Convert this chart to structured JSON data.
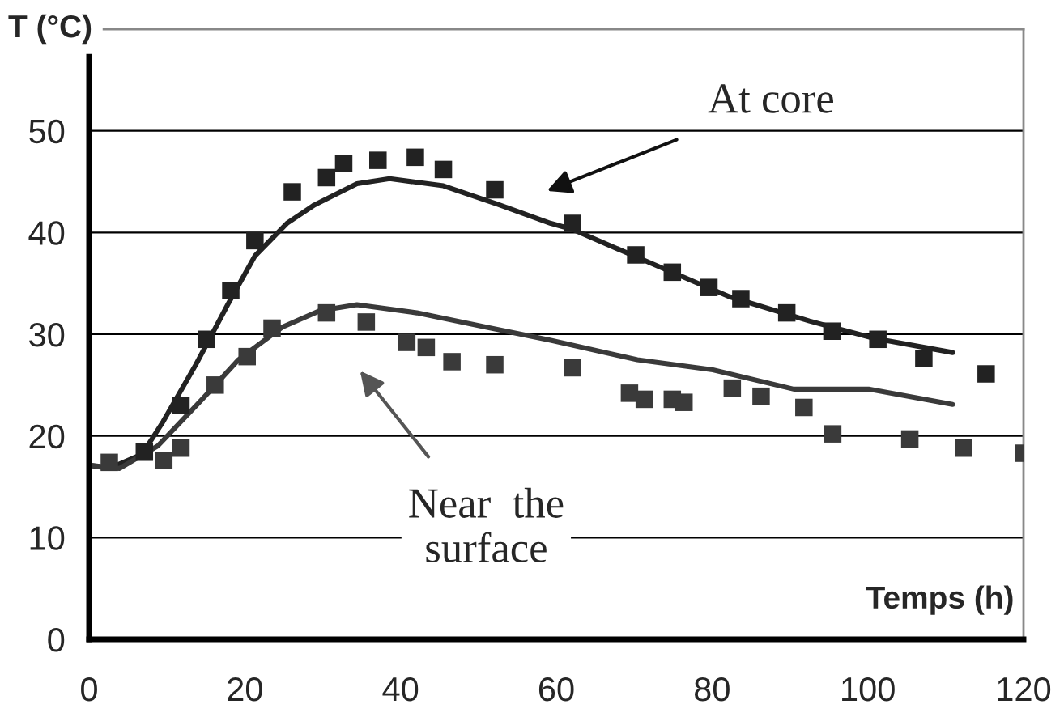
{
  "chart_data": {
    "type": "scatter",
    "xlabel": "Temps (h)",
    "ylabel": "T (°C)",
    "xlim": [
      0,
      120
    ],
    "xticks": [
      0,
      20,
      40,
      60,
      80,
      100,
      120
    ],
    "ylim": [
      0,
      60
    ],
    "yticks": [
      0,
      10,
      20,
      30,
      40,
      50
    ],
    "grid": "y",
    "legend": false,
    "series": [
      {
        "marker": "square",
        "color": "#222222",
        "x": [
          7.1,
          11.8,
          15.1,
          18.2,
          21.3,
          26.1,
          30.5,
          32.7,
          37.1,
          41.9,
          45.5,
          52.1,
          62.1,
          70.2,
          74.9,
          79.6,
          83.7,
          89.6,
          95.4,
          101.3,
          107.2,
          115.2
        ],
        "values": [
          18.4,
          23.0,
          29.5,
          34.3,
          39.2,
          44.0,
          45.4,
          46.8,
          47.1,
          47.4,
          46.2,
          44.2,
          40.9,
          37.8,
          36.1,
          34.6,
          33.5,
          32.1,
          30.3,
          29.5,
          27.6,
          26.1
        ]
      },
      {
        "type": "line",
        "color": "#222222",
        "x": [
          0.2,
          2.6,
          6.8,
          9.5,
          13.7,
          17.8,
          21.3,
          25.4,
          28.9,
          34.4,
          38.6,
          45.5,
          52.4,
          59.3,
          62.1,
          71.8,
          82.2,
          92.5,
          100.8,
          110.9
        ],
        "values": [
          17.1,
          16.8,
          18.2,
          21.4,
          27.0,
          32.9,
          37.7,
          40.9,
          42.7,
          44.8,
          45.3,
          44.6,
          42.8,
          40.9,
          40.3,
          37.1,
          33.7,
          31.3,
          29.6,
          28.2
        ]
      },
      {
        "marker": "square",
        "color": "#3a3a3a",
        "x": [
          2.6,
          9.6,
          11.8,
          16.2,
          20.3,
          23.5,
          30.5,
          35.6,
          40.8,
          43.3,
          46.6,
          52.1,
          62.1,
          69.4,
          71.3,
          74.9,
          76.4,
          82.6,
          86.3,
          91.8,
          95.5,
          105.4,
          112.3,
          120
        ],
        "values": [
          17.4,
          17.6,
          18.8,
          25.0,
          27.8,
          30.6,
          32.1,
          31.2,
          29.2,
          28.7,
          27.3,
          27.0,
          26.7,
          24.2,
          23.6,
          23.6,
          23.3,
          24.7,
          23.9,
          22.8,
          20.2,
          19.7,
          18.8,
          18.3
        ]
      },
      {
        "type": "line",
        "color": "#3a3a3a",
        "x": [
          0.2,
          3.9,
          8.8,
          14.4,
          19.2,
          24.8,
          29.6,
          34.4,
          42.1,
          51.0,
          59.3,
          70.4,
          80.1,
          90.5,
          100.1,
          110.9
        ],
        "values": [
          17.1,
          16.8,
          19.0,
          23.5,
          27.5,
          30.7,
          32.3,
          32.9,
          32.1,
          30.7,
          29.4,
          27.5,
          26.5,
          24.6,
          24.6,
          23.1
        ]
      }
    ],
    "annotations": [
      "At core",
      "Near  the\nsurface"
    ]
  }
}
